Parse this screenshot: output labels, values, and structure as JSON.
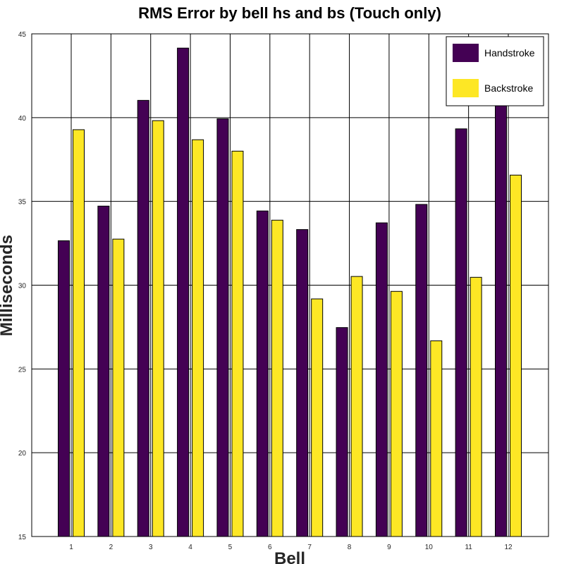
{
  "chart_data": {
    "type": "bar",
    "title": "RMS Error by bell hs and bs (Touch only)",
    "xlabel": "Bell",
    "ylabel": "Milliseconds",
    "categories": [
      "1",
      "2",
      "3",
      "4",
      "5",
      "6",
      "7",
      "8",
      "9",
      "10",
      "11",
      "12"
    ],
    "ylim": [
      15,
      45
    ],
    "yticks": [
      "15",
      "20",
      "25",
      "30",
      "35",
      "40",
      "45"
    ],
    "grid": true,
    "legend_position": "top-right",
    "series": [
      {
        "name": "Handstroke",
        "color": "#440154",
        "values": [
          32.65,
          34.72,
          41.03,
          44.15,
          39.93,
          34.43,
          33.32,
          27.47,
          33.72,
          34.82,
          39.33,
          44.35
        ]
      },
      {
        "name": "Backstroke",
        "color": "#fde725",
        "values": [
          39.28,
          32.75,
          39.82,
          38.68,
          38.0,
          33.88,
          29.18,
          30.52,
          29.63,
          26.68,
          30.47,
          36.57
        ]
      }
    ]
  }
}
